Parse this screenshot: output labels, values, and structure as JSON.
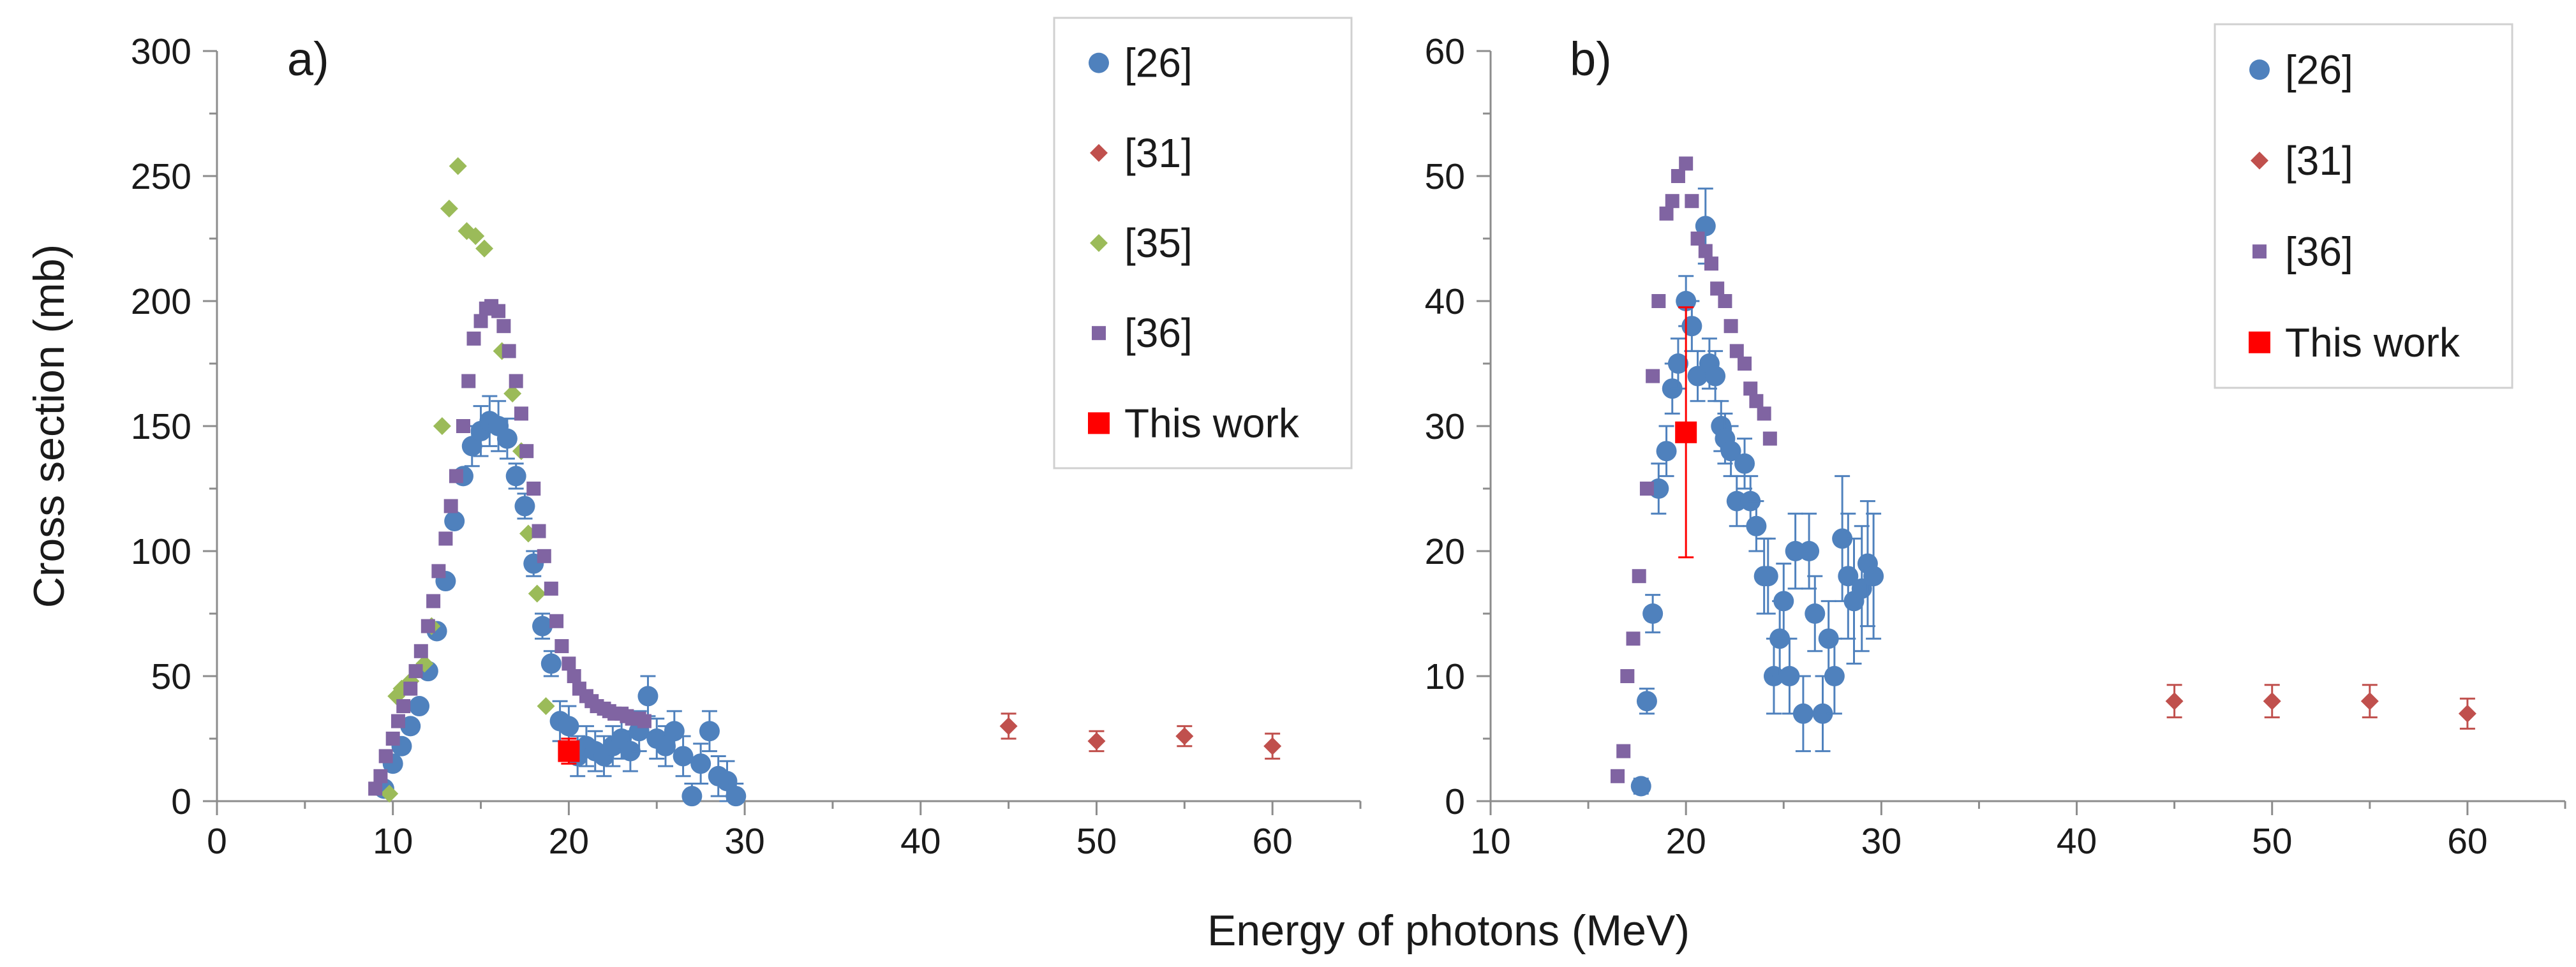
{
  "figure": {
    "shared_xlabel": "Energy of photons (MeV)"
  },
  "chart_data": [
    {
      "type": "scatter",
      "panel": "a)",
      "xlabel": "Energy of photons (MeV)",
      "ylabel": "Cross section (mb)",
      "xlim": [
        0,
        65
      ],
      "ylim": [
        0,
        300
      ],
      "xticks": [
        0,
        10,
        20,
        30,
        40,
        50,
        60
      ],
      "yticks": [
        0,
        50,
        100,
        150,
        200,
        250,
        300
      ],
      "grid": false,
      "legend": "top-right",
      "series": [
        {
          "name": "[26]",
          "marker": "circle",
          "color": "#4f81bd",
          "x": [
            9.5,
            10.0,
            10.5,
            11.0,
            11.5,
            12.0,
            12.5,
            13.0,
            13.5,
            14.0,
            14.5,
            15.0,
            15.5,
            16.0,
            16.5,
            17.0,
            17.5,
            18.0,
            18.5,
            19.0,
            19.5,
            20.0,
            20.5,
            21.0,
            21.5,
            22.0,
            22.5,
            23.0,
            23.5,
            24.0,
            24.5,
            25.0,
            25.5,
            26.0,
            26.5,
            27.0,
            27.5,
            28.0,
            28.5,
            29.0,
            29.5
          ],
          "y": [
            5,
            15,
            22,
            30,
            38,
            52,
            68,
            88,
            112,
            130,
            142,
            148,
            152,
            150,
            145,
            130,
            118,
            95,
            70,
            55,
            32,
            30,
            18,
            22,
            20,
            18,
            22,
            25,
            20,
            28,
            42,
            25,
            22,
            28,
            18,
            2,
            15,
            28,
            10,
            8,
            2
          ],
          "err": [
            0,
            0,
            0,
            0,
            0,
            0,
            0,
            0,
            0,
            0,
            8,
            10,
            10,
            10,
            8,
            5,
            5,
            5,
            5,
            5,
            8,
            8,
            8,
            8,
            8,
            8,
            8,
            8,
            8,
            8,
            8,
            8,
            8,
            8,
            8,
            5,
            8,
            8,
            8,
            8,
            5
          ]
        },
        {
          "name": "[31]",
          "marker": "diamond",
          "color": "#c0504d",
          "x": [
            45,
            50,
            55,
            60
          ],
          "y": [
            30,
            24,
            26,
            22
          ],
          "err": [
            5,
            4,
            4,
            5
          ]
        },
        {
          "name": "[35]",
          "marker": "diamond",
          "color": "#9bbb59",
          "x": [
            9.8,
            10.2,
            10.5,
            11.0,
            11.8,
            12.2,
            12.8,
            13.2,
            13.7,
            14.2,
            14.7,
            15.2,
            15.7,
            16.2,
            16.8,
            17.3,
            17.7,
            18.2,
            18.7
          ],
          "y": [
            3,
            42,
            45,
            48,
            55,
            70,
            150,
            237,
            254,
            228,
            226,
            221,
            197,
            180,
            163,
            140,
            107,
            83,
            38
          ],
          "err": []
        },
        {
          "name": "[36]",
          "marker": "square",
          "color": "#8064a2",
          "x": [
            9.0,
            9.3,
            9.6,
            10.0,
            10.3,
            10.6,
            11.0,
            11.3,
            11.6,
            12.0,
            12.3,
            12.6,
            13.0,
            13.3,
            13.6,
            14.0,
            14.3,
            14.6,
            15.0,
            15.3,
            15.6,
            16.0,
            16.3,
            16.6,
            17.0,
            17.3,
            17.6,
            18.0,
            18.3,
            18.6,
            19.0,
            19.3,
            19.6,
            20.0,
            20.3,
            20.6,
            21.0,
            21.3,
            21.6,
            22.0,
            22.3,
            22.6,
            23.0,
            23.3,
            23.6,
            24.0,
            24.3
          ],
          "y": [
            5,
            10,
            18,
            25,
            32,
            38,
            45,
            52,
            60,
            70,
            80,
            92,
            105,
            118,
            130,
            150,
            168,
            185,
            192,
            197,
            198,
            196,
            190,
            180,
            168,
            155,
            140,
            125,
            108,
            98,
            85,
            72,
            62,
            55,
            50,
            45,
            42,
            40,
            38,
            37,
            36,
            35,
            35,
            34,
            33,
            33,
            32
          ],
          "err": []
        },
        {
          "name": "This work",
          "marker": "square",
          "color": "#ff0000",
          "x": [
            20
          ],
          "y": [
            20
          ],
          "err": [
            5
          ]
        }
      ]
    },
    {
      "type": "scatter",
      "panel": "b)",
      "xlabel": "Energy of photons (MeV)",
      "ylabel": "",
      "xlim": [
        10,
        65
      ],
      "ylim": [
        0,
        60
      ],
      "xticks": [
        10,
        20,
        30,
        40,
        50,
        60
      ],
      "yticks": [
        0,
        10,
        20,
        30,
        40,
        50,
        60
      ],
      "grid": false,
      "legend": "top-right",
      "series": [
        {
          "name": "[26]",
          "marker": "circle",
          "color": "#4f81bd",
          "x": [
            17.7,
            18.0,
            18.3,
            18.6,
            19.0,
            19.3,
            19.6,
            20.0,
            20.3,
            20.6,
            21.0,
            21.2,
            21.5,
            21.8,
            22.0,
            22.3,
            22.6,
            23.0,
            23.3,
            23.6,
            24.0,
            24.2,
            24.5,
            24.8,
            25.0,
            25.3,
            25.6,
            26.0,
            26.3,
            26.6,
            27.0,
            27.3,
            27.6,
            28.0,
            28.3,
            28.6,
            29.0,
            29.3,
            29.6
          ],
          "y": [
            1.2,
            8,
            15,
            25,
            28,
            33,
            35,
            40,
            38,
            34,
            46,
            35,
            34,
            30,
            29,
            28,
            24,
            27,
            24,
            22,
            18,
            18,
            10,
            13,
            16,
            10,
            20,
            7,
            20,
            15,
            7,
            13,
            10,
            21,
            18,
            16,
            17,
            19,
            18
          ],
          "err": [
            0.6,
            1,
            1.5,
            2,
            2,
            2,
            2,
            2,
            2,
            2,
            3,
            2,
            2,
            2,
            2,
            2,
            2,
            2,
            2,
            2,
            3,
            3,
            3,
            3,
            3,
            3,
            3,
            3,
            3,
            3,
            3,
            3,
            3,
            5,
            5,
            5,
            5,
            5,
            5
          ]
        },
        {
          "name": "[31]",
          "marker": "diamond",
          "color": "#c0504d",
          "x": [
            45,
            50,
            55,
            60
          ],
          "y": [
            8,
            8,
            8,
            7
          ],
          "err": [
            1.3,
            1.3,
            1.3,
            1.2
          ]
        },
        {
          "name": "[36]",
          "marker": "square",
          "color": "#8064a2",
          "x": [
            16.5,
            16.8,
            17.0,
            17.3,
            17.6,
            18.0,
            18.3,
            18.6,
            19.0,
            19.3,
            19.6,
            20.0,
            20.3,
            20.6,
            21.0,
            21.3,
            21.6,
            22.0,
            22.3,
            22.6,
            23.0,
            23.3,
            23.6,
            24.0,
            24.3
          ],
          "y": [
            2,
            4,
            10,
            13,
            18,
            25,
            34,
            40,
            47,
            48,
            50,
            51,
            48,
            45,
            44,
            43,
            41,
            40,
            38,
            36,
            35,
            33,
            32,
            31,
            29
          ],
          "err": []
        },
        {
          "name": "This work",
          "marker": "square",
          "color": "#ff0000",
          "x": [
            20
          ],
          "y": [
            29.5
          ],
          "err": [
            10
          ]
        }
      ]
    }
  ]
}
